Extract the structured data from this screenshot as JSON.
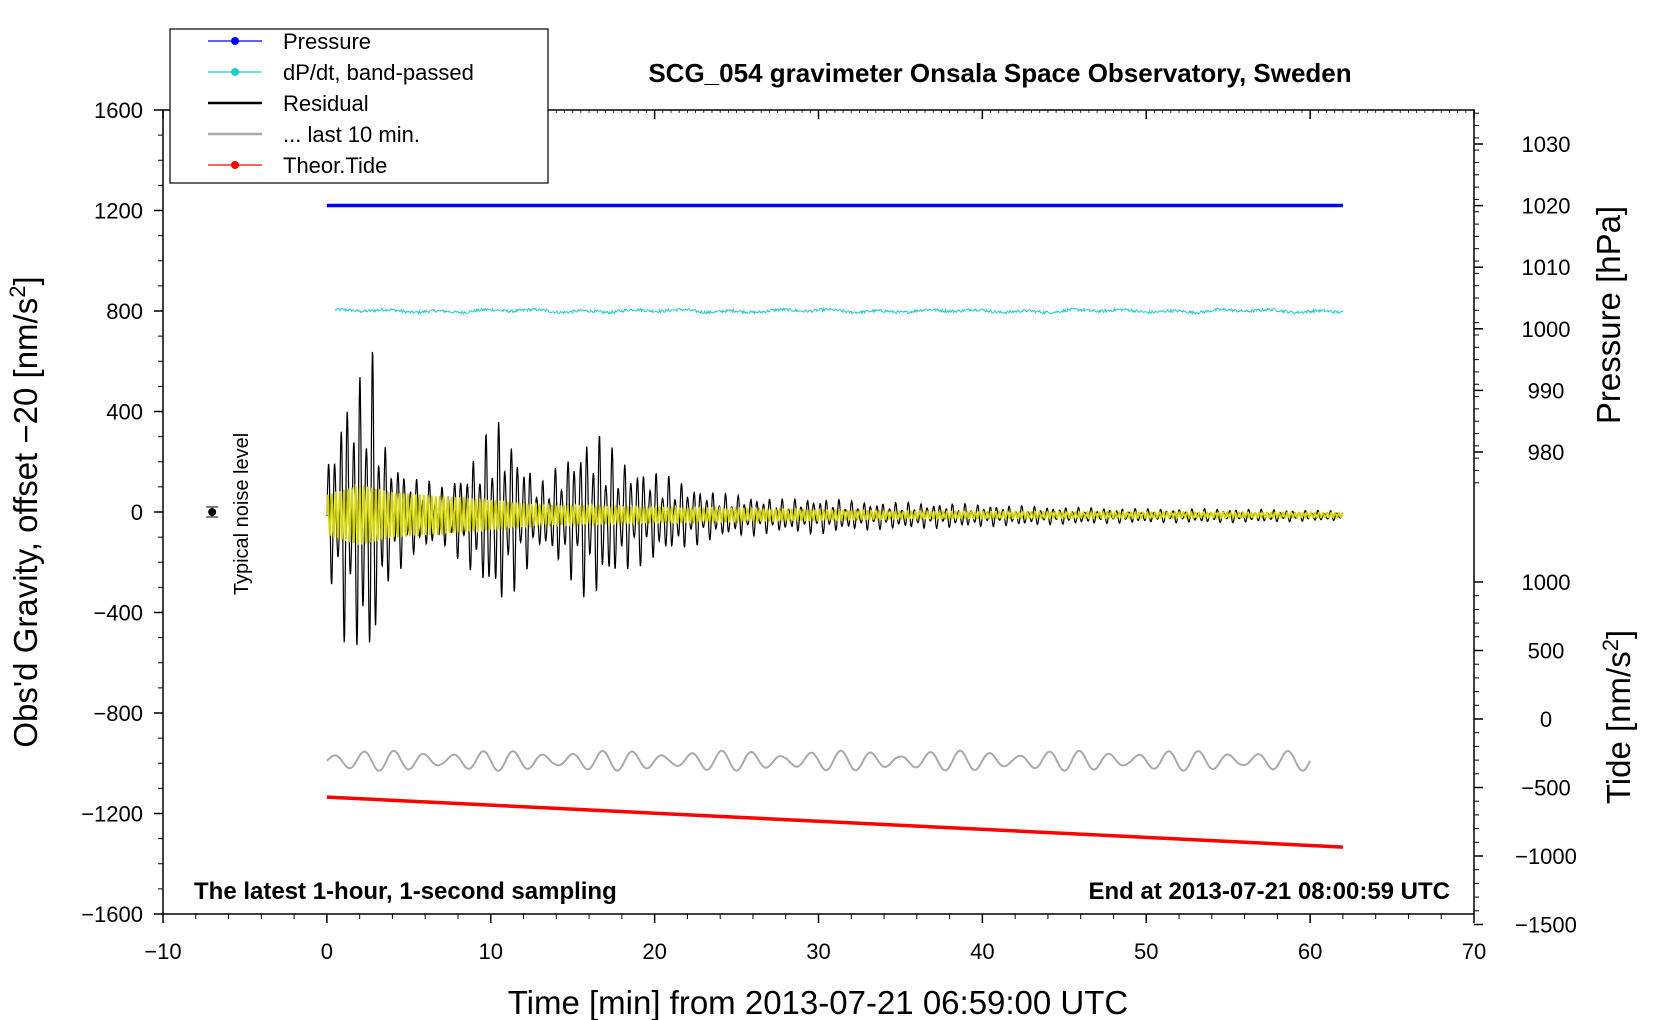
{
  "chart_data": {
    "type": "line",
    "title": "SCG_054 gravimeter Onsala Space Observatory, Sweden",
    "annotation_left": "The latest 1-hour, 1-second sampling",
    "annotation_right": "End at 2013-07-21 08:00:59 UTC",
    "xlabel": "Time [min] from 2013-07-21 06:59:00 UTC",
    "xlim": [
      -10,
      70
    ],
    "x_ticks": [
      "−10",
      "0",
      "10",
      "20",
      "30",
      "40",
      "50",
      "60",
      "70"
    ],
    "ylabel_left": "Obs'd Gravity, offset −20 [nm/s",
    "ylabel_left_sup": "2",
    "ylabel_left_tail": "]",
    "ylim_left": [
      -1600,
      1600
    ],
    "y_ticks_left": [
      "1600",
      "1200",
      "800",
      "400",
      "0",
      "−400",
      "−800",
      "−1200",
      "−1600"
    ],
    "ylabel_pressure": "Pressure [hPa]",
    "y_ticks_pressure": [
      "1030",
      "1020",
      "1010",
      "1000",
      "990",
      "980"
    ],
    "ylabel_tide": "Tide [nm/s",
    "ylabel_tide_sup": "2",
    "ylabel_tide_tail": "]",
    "y_ticks_tide": [
      "1000",
      "500",
      "0",
      "−500",
      "−1000",
      "−1500"
    ],
    "noise_label": "Typical noise level",
    "noise_marker": {
      "x": -7,
      "y": 0,
      "err": 20
    },
    "legend": [
      {
        "label": "Pressure",
        "color": "#0000ff",
        "marker": true
      },
      {
        "label": "dP/dt, band-passed",
        "color": "#22cccc",
        "marker": true
      },
      {
        "label": "Residual",
        "color": "#000000",
        "marker": false
      },
      {
        "label": "... last 10 min.",
        "color": "#aaaaaa",
        "marker": false
      },
      {
        "label": "Theor.Tide",
        "color": "#ff0000",
        "marker": true
      }
    ],
    "series": [
      {
        "name": "Pressure",
        "color": "#0000ff",
        "x_range": [
          0,
          62
        ],
        "y_left_level": 1220
      },
      {
        "name": "dP/dt, band-passed",
        "color": "#22cccc",
        "x_range": [
          0.5,
          62
        ],
        "y_left_level": 800,
        "amplitude": 12
      },
      {
        "name": "Residual",
        "color": "#000000",
        "x_range": [
          0,
          62
        ],
        "envelope": {
          "x": [
            0,
            1,
            2,
            2.7,
            3.5,
            5,
            7,
            8.5,
            9.5,
            10.3,
            11.5,
            13,
            14.5,
            15.7,
            16.5,
            18,
            20,
            22,
            24,
            26,
            28,
            30,
            32,
            34,
            38,
            40,
            42,
            45,
            50,
            55,
            62
          ],
          "amp": [
            200,
            500,
            580,
            700,
            300,
            170,
            120,
            200,
            300,
            400,
            300,
            130,
            230,
            330,
            340,
            230,
            180,
            130,
            90,
            80,
            65,
            75,
            60,
            55,
            50,
            45,
            40,
            35,
            28,
            28,
            20
          ]
        }
      },
      {
        "name": "... last 10 min.",
        "color": "#aaaaaa",
        "x_range": [
          0,
          60
        ],
        "y_left_level": -990,
        "amplitude": 40
      },
      {
        "name": "Theor.Tide",
        "color": "#ff0000",
        "x_range": [
          0,
          62
        ],
        "y_tide": [
          -570,
          -935
        ]
      },
      {
        "name": "Residual (band-passed)",
        "color": "#d4d400",
        "x_range": [
          0,
          62
        ],
        "envelope": {
          "x": [
            0,
            2,
            4,
            8,
            10,
            13,
            20,
            26,
            35,
            45,
            62
          ],
          "amp": [
            80,
            120,
            90,
            70,
            60,
            40,
            30,
            25,
            15,
            12,
            10
          ]
        }
      }
    ]
  }
}
